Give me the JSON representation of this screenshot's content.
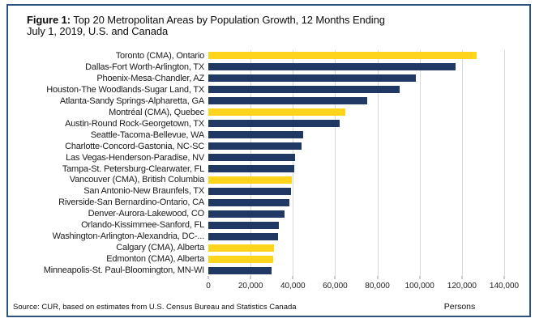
{
  "figure": {
    "title_prefix": "Figure 1:",
    "title_line1": " Top 20 Metropolitan Areas by Population Growth, 12 Months Ending",
    "title_line2": "July 1, 2019, U.S. and Canada"
  },
  "footer": {
    "source": "Source: CUR, based on estimates from U.S. Census Bureau and Statistics Canada",
    "axis_label": "Persons"
  },
  "colors": {
    "us_bar": "#1F3864",
    "canada_bar": "#FFD41C",
    "frame_border": "#2B537E",
    "gridline": "#D8D8D8"
  },
  "chart_data": {
    "type": "bar",
    "orientation": "horizontal",
    "title": "Figure 1: Top 20 Metropolitan Areas by Population Growth, 12 Months Ending July 1, 2019, U.S. and Canada",
    "xlabel": "Persons",
    "ylabel": "",
    "xlim": [
      0,
      140000
    ],
    "x_ticks": [
      0,
      20000,
      40000,
      60000,
      80000,
      100000,
      120000,
      140000
    ],
    "x_tick_labels": [
      "0",
      "20,000",
      "40,000",
      "60,000",
      "80,000",
      "100,000",
      "120,000",
      "140,000"
    ],
    "grid": true,
    "legend": false,
    "categories": [
      "Toronto (CMA), Ontario",
      "Dallas-Fort Worth-Arlington, TX",
      "Phoenix-Mesa-Chandler, AZ",
      "Houston-The Woodlands-Sugar Land, TX",
      "Atlanta-Sandy Springs-Alpharetta, GA",
      "Montréal (CMA), Quebec",
      "Austin-Round Rock-Georgetown, TX",
      "Seattle-Tacoma-Bellevue, WA",
      "Charlotte-Concord-Gastonia, NC-SC",
      "Las Vegas-Henderson-Paradise, NV",
      "Tampa-St. Petersburg-Clearwater, FL",
      "Vancouver (CMA), British Columbia",
      "San Antonio-New Braunfels, TX",
      "Riverside-San Bernardino-Ontario, CA",
      "Denver-Aurora-Lakewood, CO",
      "Orlando-Kissimmee-Sanford, FL",
      "Washington-Arlington-Alexandria, DC-...",
      "Calgary (CMA), Alberta",
      "Edmonton (CMA), Alberta",
      "Minneapolis-St. Paul-Bloomington, MN-WI"
    ],
    "values": [
      127000,
      117000,
      98000,
      90500,
      75000,
      65000,
      62000,
      45000,
      44000,
      41000,
      40500,
      39500,
      39000,
      38500,
      36000,
      33500,
      33000,
      31000,
      30500,
      30000
    ],
    "groups": [
      "canada",
      "us",
      "us",
      "us",
      "us",
      "canada",
      "us",
      "us",
      "us",
      "us",
      "us",
      "canada",
      "us",
      "us",
      "us",
      "us",
      "us",
      "canada",
      "canada",
      "us"
    ]
  }
}
